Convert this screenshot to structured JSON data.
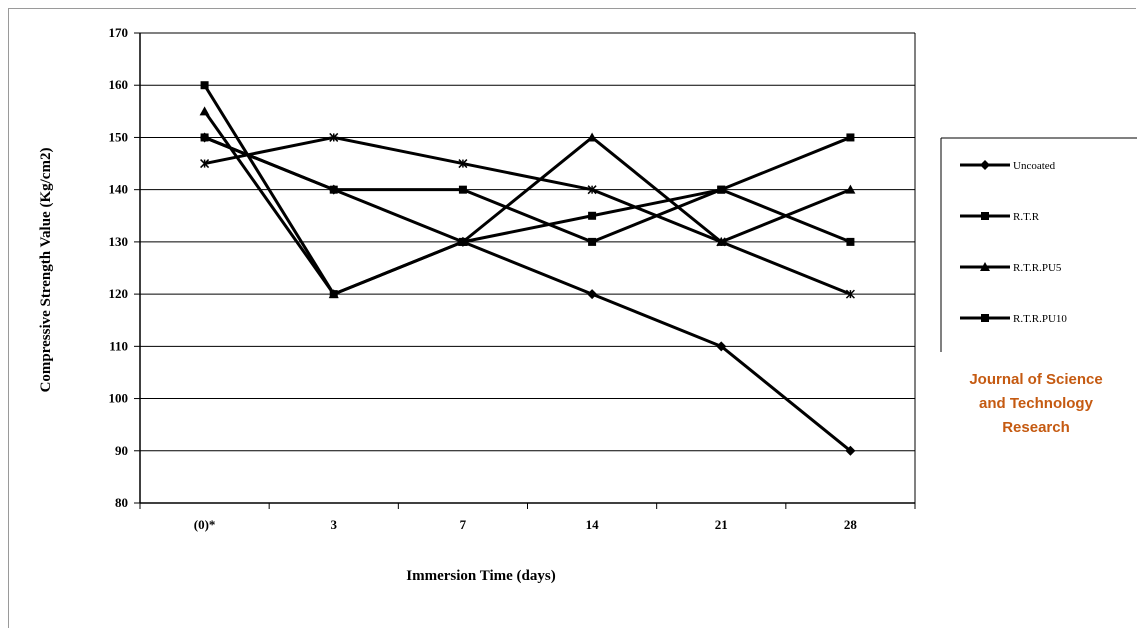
{
  "chart_data": {
    "type": "line",
    "title": "",
    "xlabel": "Immersion Time (days)",
    "ylabel": "Compressive Strength Value (Kg/cm2)",
    "categories": [
      "(0)*",
      "3",
      "7",
      "14",
      "21",
      "28"
    ],
    "ylim": [
      80,
      170
    ],
    "yticks": [
      80,
      90,
      100,
      110,
      120,
      130,
      140,
      150,
      160,
      170
    ],
    "grid": "horizontal",
    "legend_position": "right",
    "series": [
      {
        "name": "Uncoated",
        "marker": "diamond",
        "color": "#000000",
        "values": [
          150,
          140,
          130,
          120,
          110,
          90
        ]
      },
      {
        "name": "R.T.R",
        "marker": "square",
        "color": "#000000",
        "values": [
          160,
          120,
          130,
          135,
          140,
          150
        ]
      },
      {
        "name": "R.T.R.PU5",
        "marker": "triangle",
        "color": "#000000",
        "values": [
          155,
          120,
          130,
          150,
          130,
          140
        ]
      },
      {
        "name": "R.T.R.PU10",
        "marker": "square",
        "color": "#000000",
        "values": [
          150,
          140,
          140,
          130,
          140,
          130
        ]
      },
      {
        "name": "",
        "marker": "star",
        "color": "#000000",
        "values": [
          145,
          150,
          145,
          140,
          130,
          120
        ]
      }
    ]
  },
  "watermark": {
    "lines": [
      "Journal of Science",
      "and Technology",
      "Research"
    ],
    "color": "#c55a11"
  }
}
